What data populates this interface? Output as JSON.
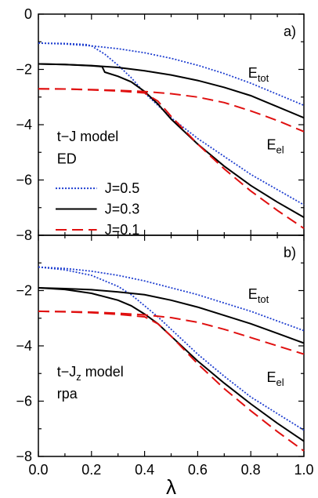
{
  "chart_data": [
    {
      "type": "line",
      "panel_label": "a)",
      "x_tick_labels": [],
      "y_ticks": [
        0,
        -2,
        -4,
        -6,
        -8
      ],
      "y_tick_labels": [
        "0",
        "−2",
        "−4",
        "−6",
        "−8"
      ],
      "xlim": [
        0,
        1
      ],
      "ylim": [
        -8,
        0
      ],
      "grid": false,
      "annotations": [
        {
          "key": "etot",
          "base": "E",
          "sub": "tot",
          "x": 0.79,
          "y": -2.3
        },
        {
          "key": "eel",
          "base": "E",
          "sub": "el",
          "x": 0.86,
          "y": -4.9
        }
      ],
      "model_text": [
        "t−J model",
        "ED"
      ],
      "legend": {
        "placement": "lower-left",
        "entries": [
          {
            "label": "J=0.5",
            "color": "#1f3fd0",
            "dash": "dotted"
          },
          {
            "label": "J=0.3",
            "color": "#000000",
            "dash": "solid"
          },
          {
            "label": "J=0.1",
            "color": "#e01010",
            "dash": "dashed"
          }
        ]
      },
      "series": [
        {
          "label": "J=0.5",
          "quantity": "E_tot",
          "color": "#1f3fd0",
          "dash": "dotted",
          "x": [
            0,
            0.1,
            0.2,
            0.3,
            0.4,
            0.5,
            0.6,
            0.7,
            0.8,
            0.9,
            1.0
          ],
          "y": [
            -1.05,
            -1.08,
            -1.15,
            -1.25,
            -1.4,
            -1.6,
            -1.85,
            -2.15,
            -2.5,
            -2.9,
            -3.3
          ]
        },
        {
          "label": "J=0.5",
          "quantity": "E_el",
          "color": "#1f3fd0",
          "dash": "dotted",
          "x": [
            0,
            0.1,
            0.18,
            0.2,
            0.25,
            0.3,
            0.35,
            0.4,
            0.45,
            0.5,
            0.6,
            0.7,
            0.8,
            0.9,
            1.0
          ],
          "y": [
            -1.05,
            -1.06,
            -1.1,
            -1.15,
            -1.45,
            -1.85,
            -2.3,
            -2.85,
            -3.3,
            -3.75,
            -4.5,
            -5.15,
            -5.8,
            -6.35,
            -6.9
          ]
        },
        {
          "label": "J=0.3",
          "quantity": "E_tot",
          "color": "#000000",
          "dash": "solid",
          "x": [
            0,
            0.1,
            0.2,
            0.3,
            0.4,
            0.5,
            0.6,
            0.7,
            0.8,
            0.9,
            1.0
          ],
          "y": [
            -1.8,
            -1.82,
            -1.86,
            -1.93,
            -2.05,
            -2.2,
            -2.4,
            -2.65,
            -2.95,
            -3.35,
            -3.75
          ]
        },
        {
          "label": "J=0.3",
          "quantity": "E_el",
          "color": "#000000",
          "dash": "solid",
          "x": [
            0,
            0.1,
            0.2,
            0.24,
            0.25,
            0.3,
            0.35,
            0.4,
            0.45,
            0.5,
            0.6,
            0.7,
            0.8,
            0.9,
            1.0
          ],
          "y": [
            -1.8,
            -1.82,
            -1.87,
            -1.9,
            -2.1,
            -2.25,
            -2.45,
            -2.8,
            -3.25,
            -3.8,
            -4.7,
            -5.5,
            -6.2,
            -6.8,
            -7.35
          ]
        },
        {
          "label": "J=0.1",
          "quantity": "E_tot",
          "color": "#e01010",
          "dash": "dashed",
          "x": [
            0,
            0.1,
            0.2,
            0.3,
            0.4,
            0.5,
            0.6,
            0.7,
            0.8,
            0.9,
            1.0
          ],
          "y": [
            -2.7,
            -2.71,
            -2.73,
            -2.76,
            -2.8,
            -2.88,
            -3.0,
            -3.2,
            -3.5,
            -3.85,
            -4.25
          ]
        },
        {
          "label": "J=0.1",
          "quantity": "E_el",
          "color": "#e01010",
          "dash": "dashed",
          "x": [
            0,
            0.1,
            0.2,
            0.3,
            0.4,
            0.45,
            0.5,
            0.6,
            0.7,
            0.8,
            0.9,
            1.0
          ],
          "y": [
            -2.7,
            -2.71,
            -2.74,
            -2.78,
            -2.85,
            -3.15,
            -3.7,
            -4.7,
            -5.6,
            -6.4,
            -7.1,
            -7.75
          ]
        }
      ]
    },
    {
      "type": "line",
      "panel_label": "b)",
      "x_ticks": [
        0,
        0.2,
        0.4,
        0.6,
        0.8,
        1.0
      ],
      "x_tick_labels": [
        "0.0",
        "0.2",
        "0.4",
        "0.6",
        "0.8",
        "1.0"
      ],
      "xlabel": "λ",
      "y_ticks": [
        -2,
        -4,
        -6,
        -8
      ],
      "y_tick_labels": [
        "−2",
        "−4",
        "−6",
        "−8"
      ],
      "xlim": [
        0,
        1
      ],
      "ylim": [
        -8,
        0
      ],
      "grid": false,
      "annotations": [
        {
          "key": "etot",
          "base": "E",
          "sub": "tot",
          "x": 0.79,
          "y": -2.3
        },
        {
          "key": "eel",
          "base": "E",
          "sub": "el",
          "x": 0.86,
          "y": -5.3
        }
      ],
      "model_text": [
        "t−J",
        "z",
        " model",
        "rpa"
      ],
      "series": [
        {
          "label": "J=0.5",
          "quantity": "E_tot",
          "color": "#1f3fd0",
          "dash": "dotted",
          "x": [
            0,
            0.1,
            0.2,
            0.3,
            0.4,
            0.5,
            0.6,
            0.7,
            0.8,
            0.9,
            1.0
          ],
          "y": [
            -1.15,
            -1.2,
            -1.3,
            -1.45,
            -1.65,
            -1.9,
            -2.15,
            -2.45,
            -2.75,
            -3.1,
            -3.45
          ]
        },
        {
          "label": "J=0.5",
          "quantity": "E_el",
          "color": "#1f3fd0",
          "dash": "dotted",
          "x": [
            0,
            0.1,
            0.2,
            0.3,
            0.35,
            0.4,
            0.45,
            0.5,
            0.6,
            0.7,
            0.8,
            0.9,
            1.0
          ],
          "y": [
            -1.15,
            -1.25,
            -1.45,
            -1.85,
            -2.15,
            -2.55,
            -2.95,
            -3.4,
            -4.3,
            -5.1,
            -5.85,
            -6.45,
            -7.05
          ]
        },
        {
          "label": "J=0.3",
          "quantity": "E_tot",
          "color": "#000000",
          "dash": "solid",
          "x": [
            0,
            0.1,
            0.2,
            0.3,
            0.4,
            0.5,
            0.6,
            0.7,
            0.8,
            0.9,
            1.0
          ],
          "y": [
            -1.9,
            -1.93,
            -1.97,
            -2.05,
            -2.15,
            -2.35,
            -2.6,
            -2.9,
            -3.2,
            -3.55,
            -3.9
          ]
        },
        {
          "label": "J=0.3",
          "quantity": "E_el",
          "color": "#000000",
          "dash": "solid",
          "x": [
            0,
            0.1,
            0.2,
            0.3,
            0.35,
            0.4,
            0.45,
            0.5,
            0.6,
            0.7,
            0.8,
            0.9,
            1.0
          ],
          "y": [
            -1.9,
            -1.96,
            -2.1,
            -2.35,
            -2.55,
            -2.85,
            -3.2,
            -3.65,
            -4.55,
            -5.35,
            -6.1,
            -6.8,
            -7.45
          ]
        },
        {
          "label": "J=0.1",
          "quantity": "E_tot",
          "color": "#e01010",
          "dash": "dashed",
          "x": [
            0,
            0.1,
            0.2,
            0.3,
            0.4,
            0.5,
            0.6,
            0.7,
            0.8,
            0.9,
            1.0
          ],
          "y": [
            -2.75,
            -2.76,
            -2.78,
            -2.82,
            -2.88,
            -2.98,
            -3.15,
            -3.4,
            -3.7,
            -4.0,
            -4.3
          ]
        },
        {
          "label": "J=0.1",
          "quantity": "E_el",
          "color": "#e01010",
          "dash": "dashed",
          "x": [
            0,
            0.1,
            0.2,
            0.3,
            0.4,
            0.45,
            0.5,
            0.6,
            0.7,
            0.8,
            0.9,
            1.0
          ],
          "y": [
            -2.75,
            -2.77,
            -2.8,
            -2.86,
            -2.95,
            -3.2,
            -3.65,
            -4.65,
            -5.55,
            -6.35,
            -7.1,
            -7.8
          ]
        }
      ]
    }
  ]
}
